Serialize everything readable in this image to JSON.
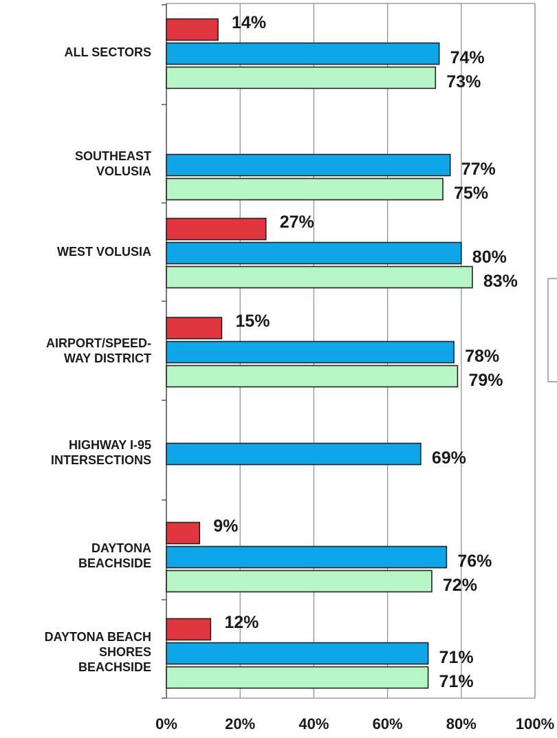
{
  "chart_data": {
    "type": "bar",
    "orientation": "horizontal",
    "categories": [
      [
        "ALL SECTORS"
      ],
      [
        "SOUTHEAST",
        "VOLUSIA"
      ],
      [
        "WEST VOLUSIA"
      ],
      [
        "AIRPORT/SPEED-",
        "WAY DISTRICT"
      ],
      [
        "HIGHWAY I-95",
        "INTERSECTIONS"
      ],
      [
        "DAYTONA",
        "BEACHSIDE"
      ],
      [
        "DAYTONA BEACH",
        "SHORES",
        "BEACHSIDE"
      ]
    ],
    "series": [
      {
        "color": "#e0363f",
        "values": [
          14,
          null,
          27,
          15,
          null,
          9,
          12
        ],
        "labels": [
          "14%",
          "",
          "27%",
          "15%",
          "",
          "9%",
          "12%"
        ]
      },
      {
        "color": "#0ea5e9",
        "values": [
          74,
          77,
          80,
          78,
          69,
          76,
          71
        ],
        "labels": [
          "74%",
          "77%",
          "80%",
          "78%",
          "69%",
          "76%",
          "71%"
        ]
      },
      {
        "color": "#b8f5c6",
        "values": [
          73,
          75,
          83,
          79,
          null,
          72,
          71
        ],
        "labels": [
          "73%",
          "75%",
          "83%",
          "79%",
          "",
          "72%",
          "71%"
        ]
      }
    ],
    "xlim": [
      0,
      100
    ],
    "ticks": [
      "0%",
      "20%",
      "40%",
      "60%",
      "80%",
      "100%"
    ],
    "grid": true,
    "legend": "right (cut off)"
  }
}
